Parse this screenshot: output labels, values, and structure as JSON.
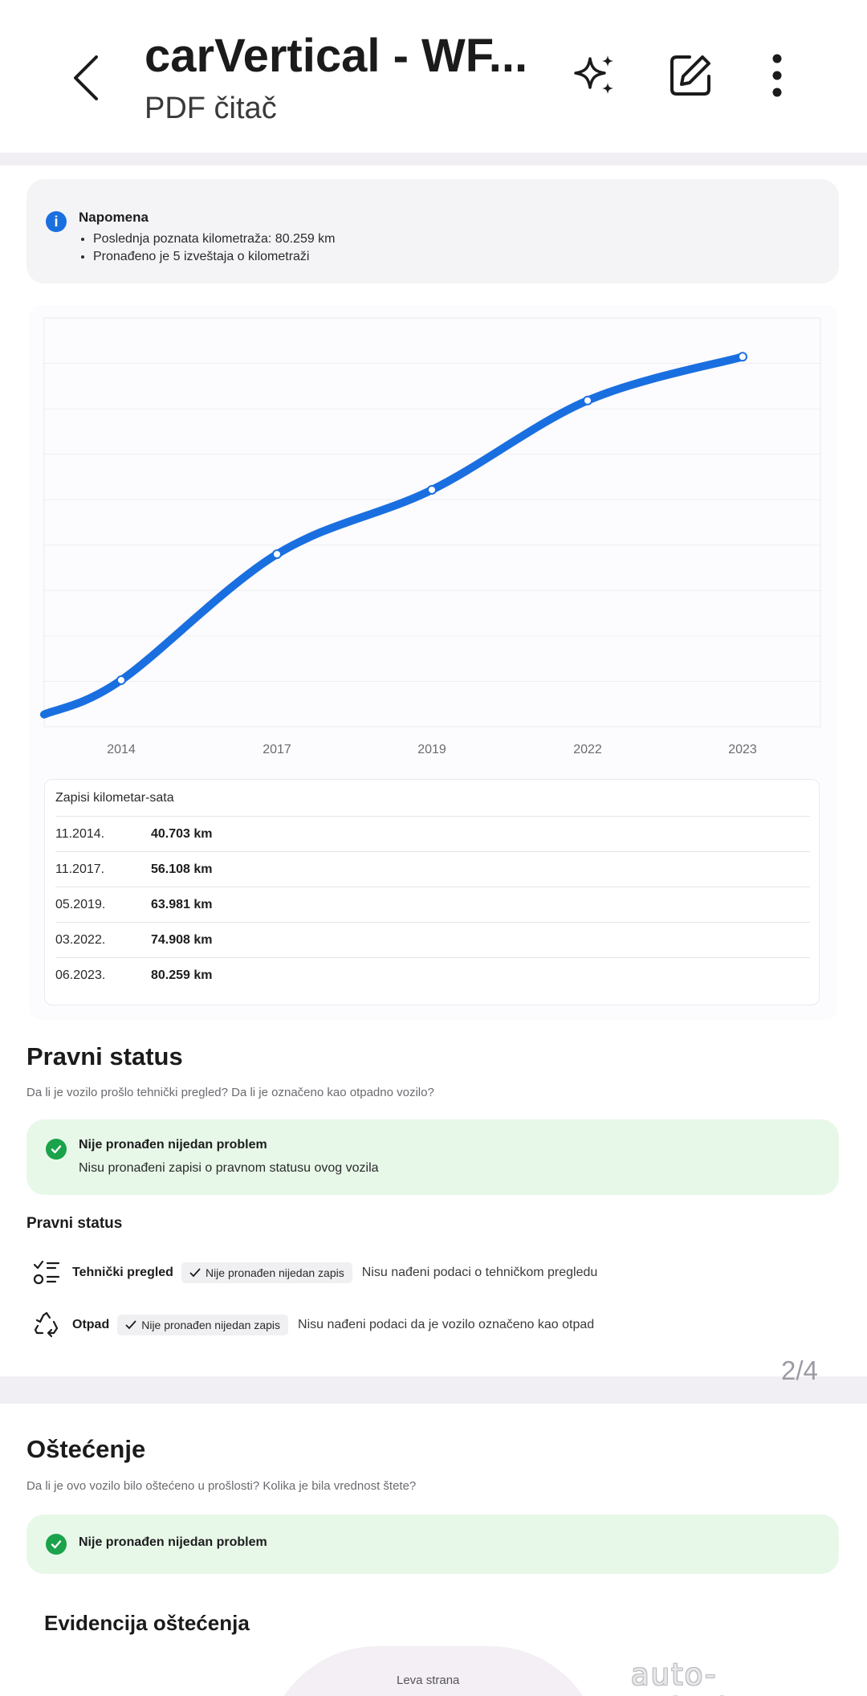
{
  "appbar": {
    "title": "carVertical - WF...",
    "subtitle": "PDF čitač"
  },
  "note": {
    "title": "Napomena",
    "items": [
      "Poslednja poznata kilometraža: 80.259 km",
      "Pronađeno je 5 izveštaja o kilometraži"
    ]
  },
  "chart_data": {
    "type": "line",
    "categories": [
      "2014",
      "2017",
      "2019",
      "2022",
      "2023"
    ],
    "values": [
      40703,
      56108,
      63981,
      74908,
      80259
    ],
    "title": "",
    "xlabel": "",
    "ylabel": "",
    "grid": true,
    "series_color": "#1a6fe0"
  },
  "mileage_table": {
    "header": "Zapisi kilometar-sata",
    "rows": [
      {
        "date": "11.2014.",
        "value": "40.703 km"
      },
      {
        "date": "11.2017.",
        "value": "56.108 km"
      },
      {
        "date": "05.2019.",
        "value": "63.981 km"
      },
      {
        "date": "03.2022.",
        "value": "74.908 km"
      },
      {
        "date": "06.2023.",
        "value": "80.259 km"
      }
    ]
  },
  "legal": {
    "title": "Pravni status",
    "desc": "Da li je vozilo prošlo tehnički pregled? Da li je označeno kao otpadno vozilo?",
    "ok_title": "Nije pronađen nijedan problem",
    "ok_text": "Nisu pronađeni zapisi o pravnom statusu ovog vozila",
    "subheading": "Pravni status",
    "rows": [
      {
        "label": "Tehnički pregled",
        "chip": "Nije pronađen nijedan zapis",
        "text": "Nisu nađeni podaci o tehničkom pregledu"
      },
      {
        "label": "Otpad",
        "chip": "Nije pronađen nijedan zapis",
        "text": "Nisu nađeni podaci da je vozilo označeno kao otpad"
      }
    ]
  },
  "page_indicator": "2/4",
  "damage": {
    "title": "Oštećenje",
    "desc": "Da li je ovo vozilo bilo oštećeno u prošlosti? Kolika je bila vrednost štete?",
    "ok_title": "Nije pronađen nijedan problem",
    "evidence_title": "Evidencija oštećenja",
    "side_label": "Leva strana"
  },
  "watermark": "auto-oglasi.net"
}
